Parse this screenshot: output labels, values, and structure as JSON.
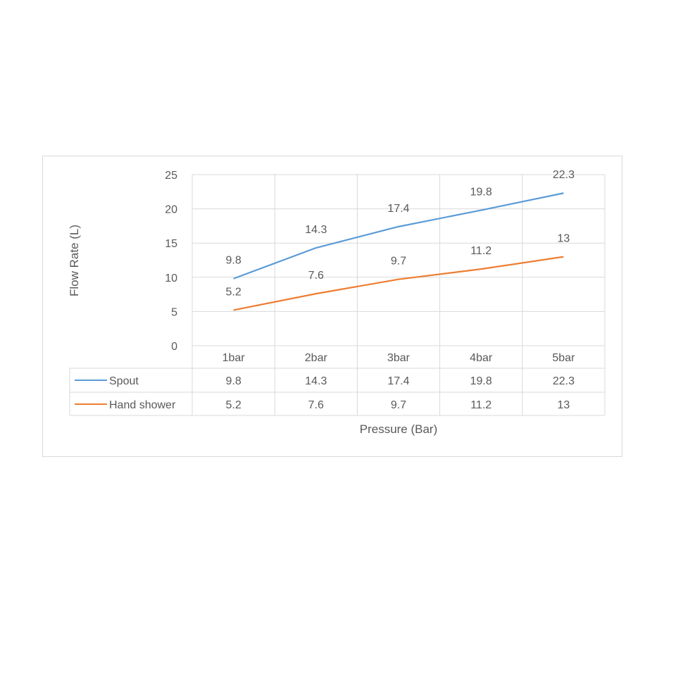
{
  "chart_data": {
    "type": "line",
    "title": "",
    "xlabel": "Pressure (Bar)",
    "ylabel": "Flow Rate (L)",
    "categories": [
      "1bar",
      "2bar",
      "3bar",
      "4bar",
      "5bar"
    ],
    "ylim": [
      0,
      25
    ],
    "yticks": [
      0,
      5,
      10,
      15,
      20,
      25
    ],
    "grid": true,
    "legend": "data-table",
    "data_table": true,
    "series": [
      {
        "name": "Spout",
        "color": "#5b9bd5",
        "values": [
          9.8,
          14.3,
          17.4,
          19.8,
          22.3
        ]
      },
      {
        "name": "Hand shower",
        "color": "#ed7d31",
        "values": [
          5.2,
          7.6,
          9.7,
          11.2,
          13
        ]
      }
    ]
  }
}
